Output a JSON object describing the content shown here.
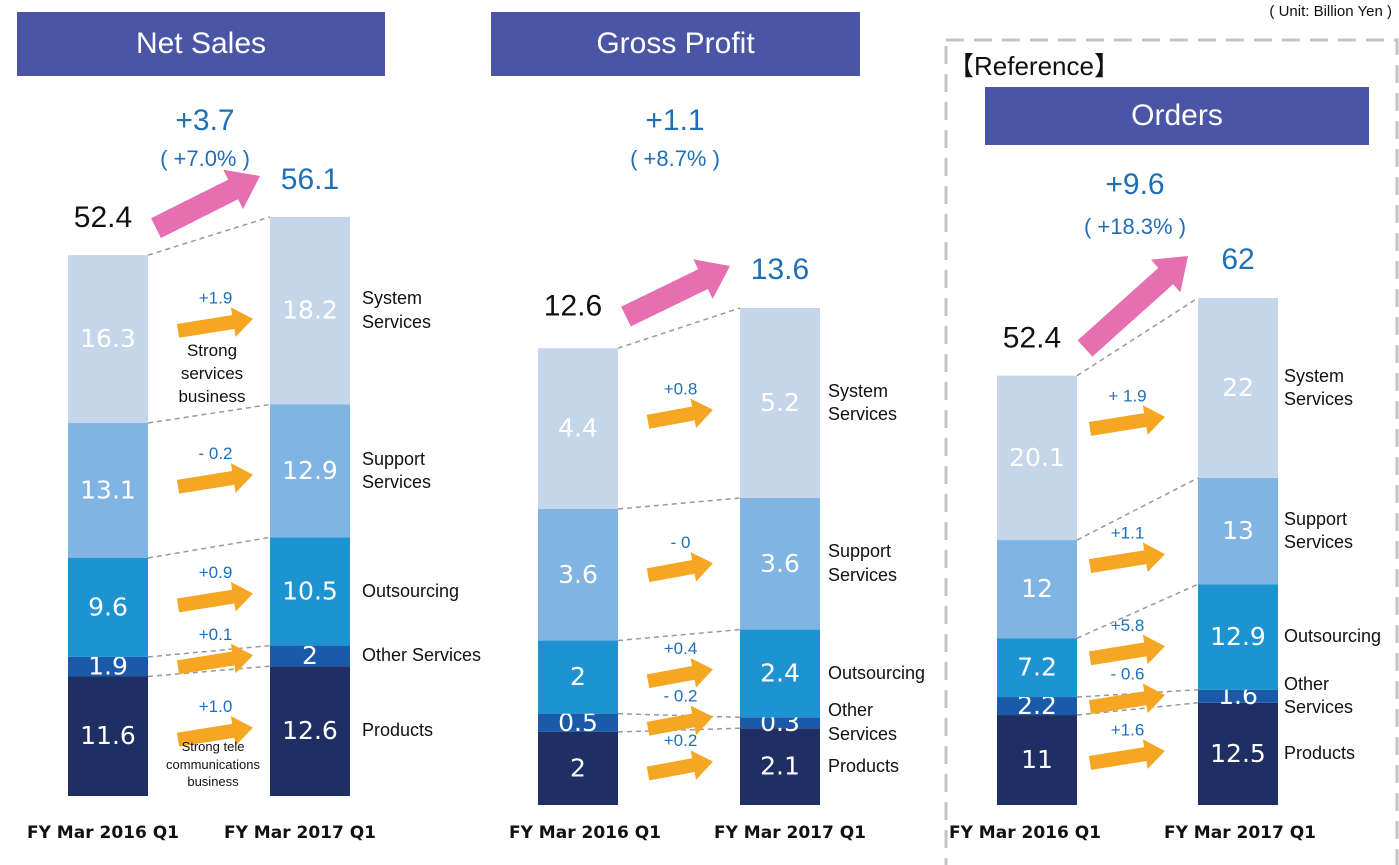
{
  "unit": "( Unit: Billion Yen )",
  "chart_data": [
    {
      "type": "stacked_bar",
      "title": "Net Sales",
      "categories": [
        "FY Mar 2016 Q1",
        "FY Mar 2017 Q1"
      ],
      "totals": [
        52.4,
        56.1
      ],
      "total_change": "+3.7",
      "total_change_pct": "( +7.0% )",
      "series": [
        {
          "name": "Products",
          "color": "#1f2f63",
          "values": [
            11.6,
            12.6
          ],
          "change": "+1.0"
        },
        {
          "name": "Other Services",
          "color": "#1a5aa8",
          "values": [
            1.9,
            2.0
          ],
          "change": "+0.1"
        },
        {
          "name": "Outsourcing",
          "color": "#1e93d2",
          "values": [
            9.6,
            10.5
          ],
          "change": "+0.9"
        },
        {
          "name": "Support Services",
          "color": "#80b4e2",
          "values": [
            13.1,
            12.9
          ],
          "change": "- 0.2"
        },
        {
          "name": "System Services",
          "color": "#c6d6ea",
          "values": [
            16.3,
            18.2
          ],
          "change": "+1.9"
        }
      ],
      "annotations": [
        "Strong services business",
        "Strong tele communications business"
      ]
    },
    {
      "type": "stacked_bar",
      "title": "Gross Profit",
      "categories": [
        "FY Mar 2016 Q1",
        "FY Mar 2017 Q1"
      ],
      "totals": [
        12.6,
        13.6
      ],
      "total_change": "+1.1",
      "total_change_pct": "( +8.7% )",
      "series": [
        {
          "name": "Products",
          "color": "#1f2f63",
          "values": [
            2.0,
            2.1
          ],
          "change": "+0.2"
        },
        {
          "name": "Other Services",
          "color": "#1a5aa8",
          "values": [
            0.5,
            0.3
          ],
          "change": "- 0.2"
        },
        {
          "name": "Outsourcing",
          "color": "#1e93d2",
          "values": [
            2.0,
            2.4
          ],
          "change": "+0.4"
        },
        {
          "name": "Support Services",
          "color": "#80b4e2",
          "values": [
            3.6,
            3.6
          ],
          "change": "- 0"
        },
        {
          "name": "System Services",
          "color": "#c6d6ea",
          "values": [
            4.4,
            5.2
          ],
          "change": "+0.8"
        }
      ]
    },
    {
      "type": "stacked_bar",
      "title": "Orders",
      "label": "【Reference】",
      "categories": [
        "FY Mar 2016 Q1",
        "FY Mar 2017 Q1"
      ],
      "totals": [
        52.4,
        62.0
      ],
      "total_change": "+9.6",
      "total_change_pct": "( +18.3% )",
      "series": [
        {
          "name": "Products",
          "color": "#1f2f63",
          "values": [
            11.0,
            12.5
          ],
          "change": "+1.6"
        },
        {
          "name": "Other Services",
          "color": "#1a5aa8",
          "values": [
            2.2,
            1.6
          ],
          "change": "- 0.6"
        },
        {
          "name": "Outsourcing",
          "color": "#1e93d2",
          "values": [
            7.2,
            12.9
          ],
          "change": "+5.8"
        },
        {
          "name": "Support Services",
          "color": "#80b4e2",
          "values": [
            12.0,
            13.0
          ],
          "change": "+1.1"
        },
        {
          "name": "System Services",
          "color": "#c6d6ea",
          "values": [
            20.1,
            22.0
          ],
          "change": "+ 1.9"
        }
      ]
    }
  ]
}
